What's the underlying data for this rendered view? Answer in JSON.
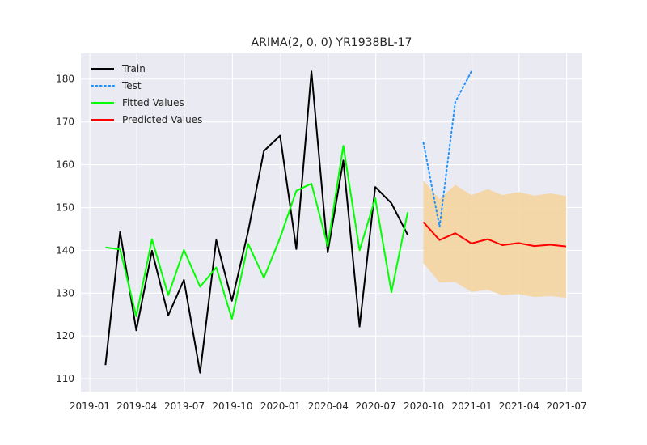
{
  "chart_data": {
    "type": "line",
    "title": "ARIMA(2, 0, 0) YR1938BL-17",
    "xlabel": "",
    "ylabel": "",
    "x_type": "date",
    "xlim": [
      "2018-12-15",
      "2021-07-31"
    ],
    "ylim": [
      107,
      186
    ],
    "x_ticks": [
      {
        "date": "2019-01-01",
        "label": "2019-01"
      },
      {
        "date": "2019-04-01",
        "label": "2019-04"
      },
      {
        "date": "2019-07-01",
        "label": "2019-07"
      },
      {
        "date": "2019-10-01",
        "label": "2019-10"
      },
      {
        "date": "2020-01-01",
        "label": "2020-01"
      },
      {
        "date": "2020-04-01",
        "label": "2020-04"
      },
      {
        "date": "2020-07-01",
        "label": "2020-07"
      },
      {
        "date": "2020-10-01",
        "label": "2020-10"
      },
      {
        "date": "2021-01-01",
        "label": "2021-01"
      },
      {
        "date": "2021-04-01",
        "label": "2021-04"
      },
      {
        "date": "2021-07-01",
        "label": "2021-07"
      }
    ],
    "y_ticks": [
      110,
      120,
      130,
      140,
      150,
      160,
      170,
      180
    ],
    "grid": true,
    "legend_position": "top-left",
    "series": [
      {
        "name": "Train",
        "color": "#000000",
        "style": "solid",
        "x": [
          "2019-01-31",
          "2019-02-28",
          "2019-03-31",
          "2019-04-30",
          "2019-05-31",
          "2019-06-30",
          "2019-07-31",
          "2019-08-31",
          "2019-09-30",
          "2019-10-31",
          "2019-11-30",
          "2019-12-31",
          "2020-01-31",
          "2020-02-29",
          "2020-03-31",
          "2020-04-30",
          "2020-05-31",
          "2020-06-30",
          "2020-07-31",
          "2020-08-31"
        ],
        "values": [
          113.2,
          144.3,
          121.3,
          139.9,
          124.8,
          133.1,
          111.4,
          142.4,
          128.2,
          144.5,
          163.2,
          166.8,
          140.3,
          181.8,
          139.5,
          161.0,
          122.2,
          154.8,
          151.0,
          143.6
        ]
      },
      {
        "name": "Test",
        "color": "#1e90ff",
        "style": "dotted",
        "x": [
          "2020-09-30",
          "2020-10-31",
          "2020-11-30",
          "2020-12-31"
        ],
        "values": [
          165.2,
          145.5,
          174.6,
          181.8
        ]
      },
      {
        "name": "Fitted Values",
        "color": "#00ff00",
        "style": "solid",
        "x": [
          "2019-01-31",
          "2019-02-28",
          "2019-03-31",
          "2019-04-30",
          "2019-05-31",
          "2019-06-30",
          "2019-07-31",
          "2019-08-31",
          "2019-09-30",
          "2019-10-31",
          "2019-11-30",
          "2019-12-31",
          "2020-01-31",
          "2020-02-29",
          "2020-03-31",
          "2020-04-30",
          "2020-05-31",
          "2020-06-30",
          "2020-07-31",
          "2020-08-31"
        ],
        "values": [
          140.7,
          140.2,
          124.6,
          142.6,
          129.5,
          140.1,
          131.5,
          136.0,
          124.0,
          141.5,
          133.6,
          142.9,
          153.9,
          155.6,
          141.0,
          164.4,
          140.0,
          152.2,
          130.2,
          148.9
        ]
      },
      {
        "name": "Predicted Values",
        "color": "#ff0000",
        "style": "solid",
        "x": [
          "2020-09-30",
          "2020-10-31",
          "2020-11-30",
          "2020-12-31",
          "2021-01-31",
          "2021-02-28",
          "2021-03-31",
          "2021-04-30",
          "2021-05-31",
          "2021-06-30"
        ],
        "values": [
          146.6,
          142.4,
          144.0,
          141.6,
          142.6,
          141.2,
          141.7,
          141.0,
          141.3,
          140.9
        ]
      }
    ],
    "confidence_band": {
      "color": "#f5d5a0",
      "x": [
        "2020-09-30",
        "2020-10-31",
        "2020-11-30",
        "2020-12-31",
        "2021-01-31",
        "2021-02-28",
        "2021-03-31",
        "2021-04-30",
        "2021-05-31",
        "2021-06-30"
      ],
      "upper": [
        156.3,
        152.0,
        155.3,
        152.9,
        154.3,
        152.9,
        153.6,
        152.8,
        153.3,
        152.7
      ],
      "lower": [
        137.0,
        132.5,
        132.6,
        130.3,
        130.8,
        129.5,
        129.8,
        129.1,
        129.3,
        128.9
      ]
    }
  }
}
